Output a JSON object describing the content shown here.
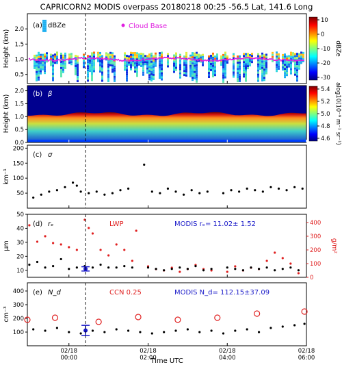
{
  "figure": {
    "title": "CAPRICORN2 MODIS overpass 20180218 00:25 -56.5 Lat,  141.6 Long",
    "xlabel": "Time UTC",
    "x_ticks": [
      {
        "t": 0.0,
        "l1": "02/18",
        "l2": "00:00"
      },
      {
        "t": 2.0,
        "l1": "02/18",
        "l2": "02:00"
      },
      {
        "t": 4.0,
        "l1": "02/18",
        "l2": "04:00"
      },
      {
        "t": 6.0,
        "l1": "02/18",
        "l2": "06:00"
      }
    ],
    "xlim": [
      -1.05,
      6.0
    ],
    "overpass_time": 0.42
  },
  "panels": {
    "a": {
      "label": "(a)",
      "sym": "dBZe",
      "legend": "Cloud Base",
      "ylabel": "Height (km)",
      "cbar_label": "dBZe",
      "cbar_ticks": [
        "10",
        "0",
        "-10",
        "-20",
        "-30"
      ],
      "yticks": [
        "0.5",
        "1.0",
        "1.5",
        "2.0"
      ]
    },
    "b": {
      "label": "(b)",
      "sym": "β",
      "ylabel": "Height (km)",
      "cbar_label": "alog10(10⁻⁹ m⁻¹ sr⁻¹)",
      "cbar_ticks": [
        "5.4",
        "5.2",
        "5.0",
        "4.8",
        "4.6"
      ],
      "yticks": [
        "0.0",
        "0.5",
        "1.0",
        "1.5",
        "2.0"
      ]
    },
    "c": {
      "label": "(c)",
      "sym": "σ",
      "ylabel": "km⁻¹",
      "yticks": [
        "50",
        "100",
        "150",
        "200"
      ]
    },
    "d": {
      "label": "(d)",
      "sym": "rₑ",
      "ylabel": "μm",
      "ylabel_right": "g/m²",
      "lwp_label": "LWP",
      "modis_text": "MODIS rₑ=   11.02± 1.52",
      "yticks": [
        "10",
        "20",
        "30",
        "40",
        "50"
      ],
      "yticks_right": [
        "0",
        "100",
        "200",
        "300",
        "400"
      ]
    },
    "e": {
      "label": "(e)",
      "sym": "N_d",
      "ylabel": "cm⁻³",
      "ccn_label": "CCN 0.25",
      "modis_text": "MODIS N_d=   112.15±37.09",
      "yticks": [
        "100",
        "200",
        "300",
        "400"
      ]
    }
  },
  "chart_data": [
    {
      "type": "heatmap",
      "panel": "a",
      "title": "dBZe",
      "y_range_km": [
        0.2,
        2.5
      ],
      "color_range": [
        -30,
        10
      ],
      "cloud_base_km_approx": 1.0
    },
    {
      "type": "heatmap",
      "panel": "b",
      "title": "β",
      "y_range_km": [
        0.0,
        2.2
      ],
      "color_range": [
        4.55,
        5.45
      ],
      "cloud_top_km_approx": 1.1
    },
    {
      "type": "scatter",
      "panel": "c",
      "ylabel": "km⁻¹",
      "ylim": [
        0,
        210
      ],
      "series": [
        {
          "x": [
            -0.9,
            -0.7,
            -0.5,
            -0.3,
            -0.1,
            0.1,
            0.2,
            0.3,
            0.5,
            0.7,
            0.9,
            1.1,
            1.3,
            1.5,
            1.9,
            2.1,
            2.3,
            2.5,
            2.7,
            2.9,
            3.1,
            3.3,
            3.5,
            3.9,
            4.1,
            4.3,
            4.5,
            4.7,
            4.9,
            5.1,
            5.3,
            5.5,
            5.7,
            5.9
          ],
          "y": [
            35,
            45,
            55,
            60,
            70,
            85,
            75,
            55,
            50,
            55,
            45,
            50,
            60,
            65,
            145,
            55,
            50,
            65,
            55,
            45,
            60,
            50,
            55,
            50,
            60,
            55,
            65,
            60,
            55,
            70,
            65,
            60,
            70,
            65
          ]
        }
      ]
    },
    {
      "type": "scatter",
      "panel": "d",
      "ylabel": "μm",
      "ylim": [
        5,
        50
      ],
      "y2lim": [
        0,
        460
      ],
      "series": [
        {
          "x": [
            -1.0,
            -0.8,
            -0.6,
            -0.4,
            -0.2,
            0.0,
            0.2,
            0.4,
            0.6,
            0.8,
            1.0,
            1.2,
            1.4,
            1.6,
            2.0,
            2.2,
            2.4,
            2.6,
            2.8,
            3.0,
            3.2,
            3.4,
            3.6,
            4.0,
            4.2,
            4.4,
            4.6,
            4.8,
            5.0,
            5.2,
            5.4,
            5.6,
            5.8
          ],
          "y": [
            14,
            16,
            12,
            13,
            18,
            11,
            12,
            13,
            12,
            14,
            12,
            12,
            13,
            12,
            12,
            11,
            10,
            11,
            12,
            11,
            13,
            10,
            11,
            12,
            11,
            10,
            12,
            11,
            12,
            10,
            11,
            12,
            10
          ]
        },
        {
          "x": [
            -1.0,
            -0.8,
            -0.6,
            -0.4,
            -0.2,
            0.0,
            0.2,
            0.4,
            0.5,
            0.6,
            0.8,
            1.0,
            1.2,
            1.4,
            1.6,
            1.7,
            2.0,
            2.2,
            2.4,
            2.6,
            2.8,
            3.0,
            3.2,
            3.4,
            3.6,
            4.0,
            4.2,
            4.4,
            4.6,
            4.8,
            5.0,
            5.2,
            5.4,
            5.6,
            5.8
          ],
          "y2": [
            380,
            260,
            300,
            250,
            240,
            220,
            200,
            420,
            360,
            320,
            200,
            160,
            240,
            200,
            120,
            340,
            80,
            60,
            50,
            70,
            40,
            60,
            90,
            60,
            50,
            40,
            80,
            50,
            70,
            60,
            120,
            180,
            140,
            100,
            30
          ]
        }
      ]
    },
    {
      "type": "scatter",
      "panel": "e",
      "ylabel": "cm⁻³",
      "ylim": [
        0,
        460
      ],
      "series": [
        {
          "x": [
            -0.9,
            -0.6,
            -0.3,
            0.0,
            0.3,
            0.6,
            0.9,
            1.2,
            1.5,
            1.8,
            2.1,
            2.4,
            2.7,
            3.0,
            3.3,
            3.6,
            3.9,
            4.2,
            4.5,
            4.8,
            5.1,
            5.4,
            5.7,
            5.95
          ],
          "y": [
            120,
            110,
            130,
            100,
            90,
            110,
            100,
            120,
            110,
            100,
            90,
            100,
            110,
            120,
            100,
            110,
            90,
            110,
            120,
            100,
            130,
            140,
            150,
            160
          ]
        },
        {
          "name": "CCN 0.25",
          "x": [
            -1.05,
            -0.35,
            0.75,
            1.75,
            2.75,
            3.75,
            4.75,
            5.95
          ],
          "y": [
            190,
            205,
            175,
            210,
            190,
            205,
            235,
            250
          ]
        }
      ]
    }
  ]
}
